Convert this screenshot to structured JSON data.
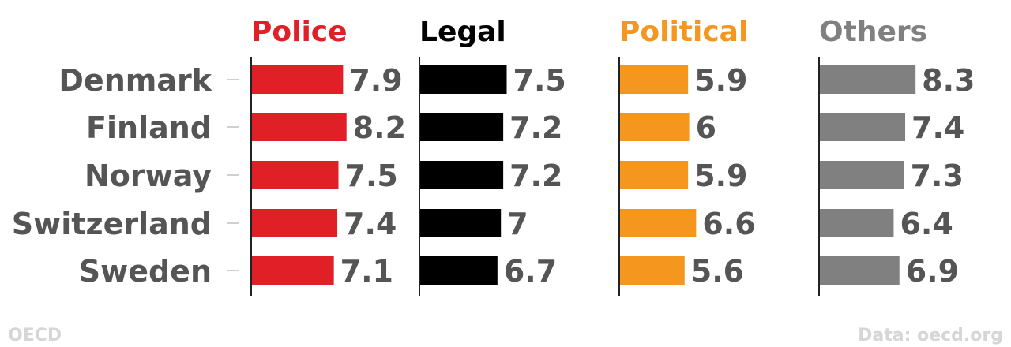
{
  "chart_data": {
    "type": "bar",
    "orientation": "horizontal",
    "layout": "small-multiples",
    "categories": [
      "Denmark",
      "Finland",
      "Norway",
      "Switzerland",
      "Sweden"
    ],
    "series": [
      {
        "name": "Police",
        "color": "#e01f26",
        "values": [
          7.9,
          8.2,
          7.5,
          7.4,
          7.1
        ]
      },
      {
        "name": "Legal",
        "color": "#000000",
        "values": [
          7.5,
          7.2,
          7.2,
          7,
          6.7
        ]
      },
      {
        "name": "Political",
        "color": "#f5971f",
        "values": [
          5.9,
          6,
          5.9,
          6.6,
          5.6
        ]
      },
      {
        "name": "Others",
        "color": "#808080",
        "values": [
          8.3,
          7.4,
          7.3,
          6.4,
          6.9
        ]
      }
    ],
    "value_labels": {
      "Police": [
        "7.9",
        "8.2",
        "7.5",
        "7.4",
        "7.1"
      ],
      "Legal": [
        "7.5",
        "7.2",
        "7.2",
        "7",
        "6.7"
      ],
      "Political": [
        "5.9",
        "6",
        "5.9",
        "6.6",
        "5.6"
      ],
      "Others": [
        "8.3",
        "7.4",
        "7.3",
        "6.4",
        "6.9"
      ]
    },
    "xlim": [
      0,
      10
    ],
    "grid": false,
    "legend": "none (panel headers)"
  },
  "footer": {
    "brand": "OECD",
    "source": "Data: oecd.org"
  }
}
